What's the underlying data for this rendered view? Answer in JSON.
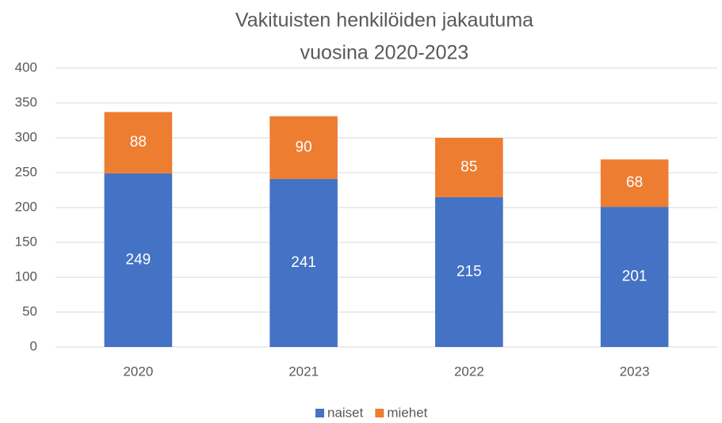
{
  "chart_data": {
    "type": "stacked_bar",
    "title": [
      "Vakituisten henkilöiden jakautuma",
      "vuosina 2020-2023"
    ],
    "categories": [
      "2020",
      "2021",
      "2022",
      "2023"
    ],
    "series": [
      {
        "name": "naiset",
        "color": "#4472c4",
        "values": [
          249,
          241,
          215,
          201
        ]
      },
      {
        "name": "miehet",
        "color": "#ed7d31",
        "values": [
          88,
          90,
          85,
          68
        ]
      }
    ],
    "ylim": [
      0,
      400
    ],
    "yticks": [
      0,
      50,
      100,
      150,
      200,
      250,
      300,
      350,
      400
    ],
    "grid": true,
    "legend": "bottom"
  }
}
